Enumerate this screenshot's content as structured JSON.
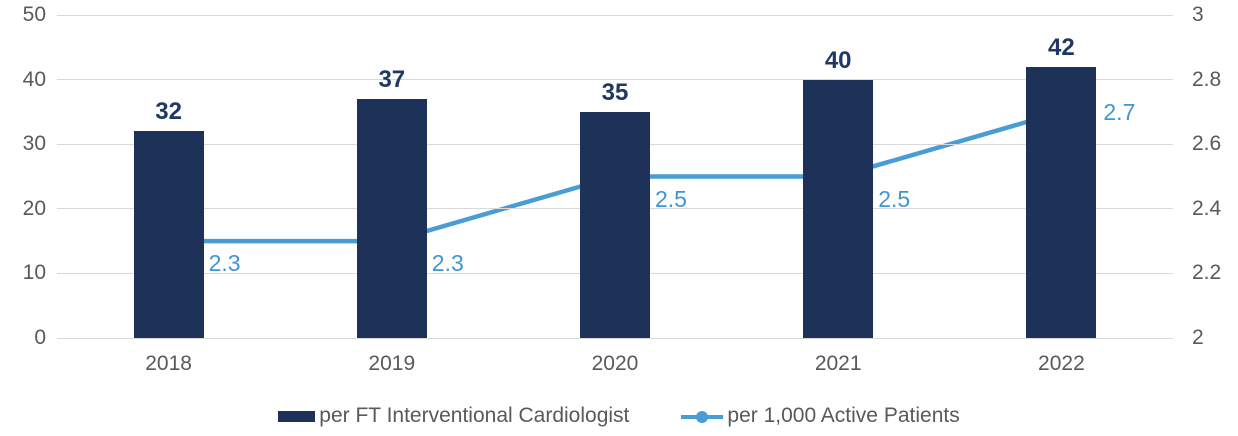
{
  "chart_data": {
    "type": "combo-bar-line",
    "categories": [
      "2018",
      "2019",
      "2020",
      "2021",
      "2022"
    ],
    "series": [
      {
        "name": "per FT Interventional Cardiologist",
        "type": "bar",
        "axis": "left",
        "values": [
          32,
          37,
          35,
          40,
          42
        ],
        "data_labels": [
          "32",
          "37",
          "35",
          "40",
          "42"
        ],
        "color": "#1E3158",
        "label_color": "#203864"
      },
      {
        "name": "per 1,000 Active Patients",
        "type": "line",
        "axis": "right",
        "values": [
          2.3,
          2.3,
          2.5,
          2.5,
          2.7
        ],
        "data_labels": [
          "2.3",
          "2.3",
          "2.5",
          "2.5",
          "2.7"
        ],
        "label_positions": [
          "below-right",
          "below-right",
          "below-right",
          "below-right",
          "right"
        ],
        "color": "#4A9CD6",
        "label_color": "#3E97D3"
      }
    ],
    "left_axis": {
      "ticks": [
        "50",
        "40",
        "30",
        "20",
        "10",
        "0"
      ],
      "min": 0,
      "max": 50
    },
    "right_axis": {
      "ticks": [
        "3",
        "2.8",
        "2.6",
        "2.4",
        "2.2",
        "2"
      ],
      "min": 2,
      "max": 3
    },
    "grid": true,
    "legend_position": "bottom",
    "title": "",
    "colors": {
      "axis_text": "#595959",
      "gridline": "#D9D9D9",
      "background": "#FFFFFF"
    }
  }
}
